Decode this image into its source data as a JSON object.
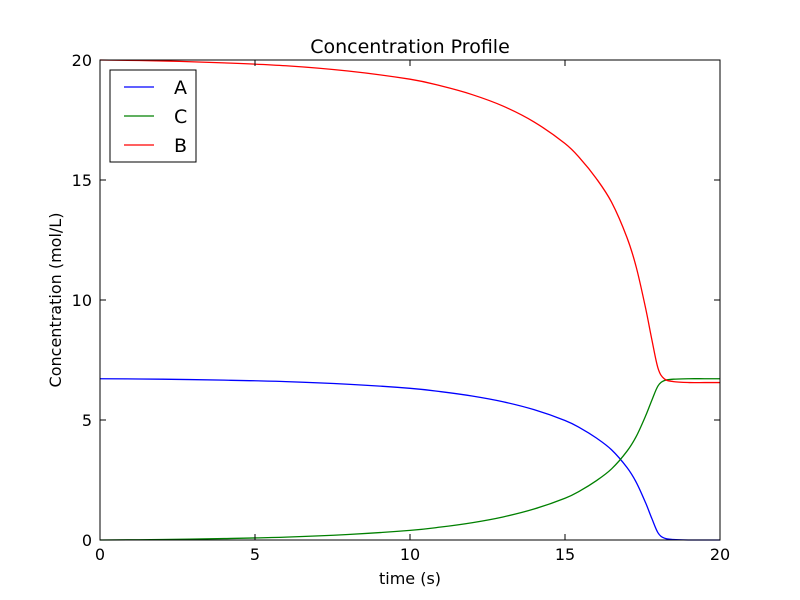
{
  "chart_data": {
    "type": "line",
    "title": "Concentration Profile",
    "xlabel": "time (s)",
    "ylabel": "Concentration (mol/L)",
    "xlim": [
      0,
      20
    ],
    "ylim": [
      0,
      20
    ],
    "xticks": [
      0,
      5,
      10,
      15,
      20
    ],
    "yticks": [
      0,
      5,
      10,
      15,
      20
    ],
    "grid": false,
    "legend_position": "top-left",
    "series": [
      {
        "name": "A",
        "color": "#0000ff",
        "x": [
          0,
          2,
          4,
          6,
          8,
          10,
          11,
          12,
          13,
          14,
          15,
          15.5,
          16,
          16.5,
          17,
          17.3,
          17.6,
          17.8,
          18,
          18.2,
          18.5,
          19,
          19.5,
          20
        ],
        "y": [
          6.72,
          6.7,
          6.66,
          6.6,
          6.49,
          6.32,
          6.18,
          6.0,
          5.76,
          5.43,
          4.98,
          4.66,
          4.26,
          3.76,
          3.02,
          2.4,
          1.55,
          0.9,
          0.3,
          0.08,
          0.02,
          0.0,
          0.0,
          0.0
        ]
      },
      {
        "name": "C",
        "color": "#008000",
        "x": [
          0,
          2,
          4,
          6,
          8,
          10,
          11,
          12,
          13,
          14,
          15,
          15.5,
          16,
          16.5,
          17,
          17.3,
          17.6,
          17.8,
          18,
          18.2,
          18.5,
          19,
          19.5,
          20
        ],
        "y": [
          0.0,
          0.02,
          0.06,
          0.12,
          0.23,
          0.4,
          0.54,
          0.72,
          0.96,
          1.29,
          1.74,
          2.06,
          2.46,
          2.96,
          3.7,
          4.32,
          5.17,
          5.82,
          6.42,
          6.64,
          6.7,
          6.72,
          6.72,
          6.72
        ]
      },
      {
        "name": "B",
        "color": "#ff0000",
        "x": [
          0,
          2,
          4,
          6,
          8,
          10,
          11,
          12,
          13,
          14,
          15,
          15.5,
          16,
          16.5,
          17,
          17.3,
          17.6,
          17.8,
          18,
          18.2,
          18.5,
          19,
          19.5,
          20
        ],
        "y": [
          20.0,
          19.96,
          19.88,
          19.76,
          19.54,
          19.2,
          18.92,
          18.56,
          18.08,
          17.42,
          16.52,
          15.88,
          15.08,
          14.08,
          12.6,
          11.36,
          9.66,
          8.36,
          7.16,
          6.72,
          6.6,
          6.56,
          6.56,
          6.56
        ]
      }
    ]
  }
}
